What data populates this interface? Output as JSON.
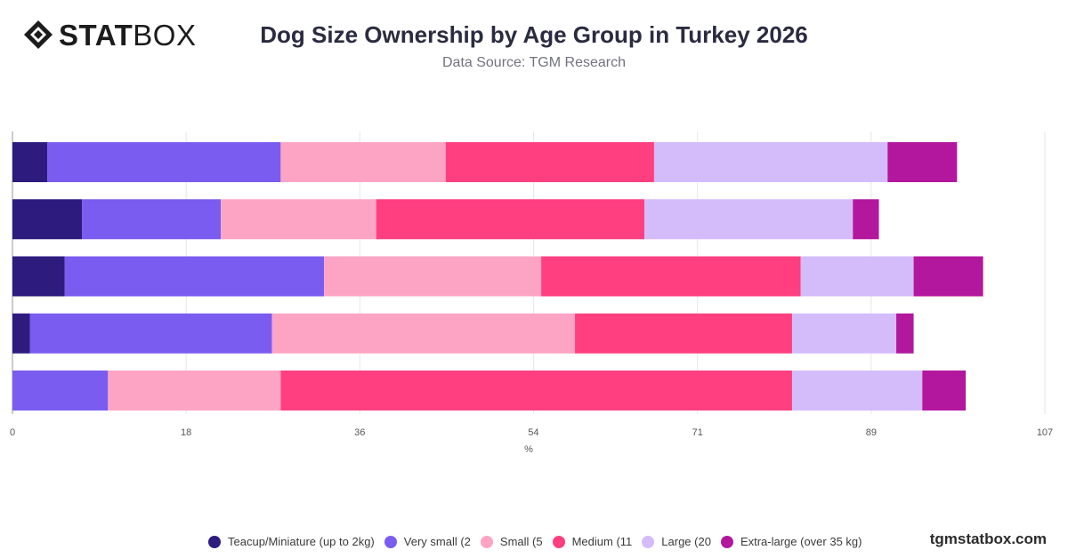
{
  "brand": {
    "logo_bold": "STAT",
    "logo_light": "BOX",
    "watermark": "tgmstatbox.com"
  },
  "header": {
    "title": "Dog Size Ownership by Age Group in Turkey 2026",
    "subtitle": "Data Source: TGM Research"
  },
  "colors": {
    "teacup": "#2e1b7e",
    "very_small": "#7b5cf0",
    "small": "#fda4c4",
    "medium": "#ff3f80",
    "large": "#d4bcfb",
    "extra_large": "#b3179e"
  },
  "chart_data": {
    "type": "bar",
    "orientation": "horizontal",
    "stacked": true,
    "xlabel": "%",
    "xlim": [
      0,
      107
    ],
    "xticks": [
      0,
      18,
      36,
      54,
      71,
      89,
      107
    ],
    "grid": true,
    "legend_position": "bottom",
    "series": [
      {
        "name": "Teacup/Miniature (up to 2kg)",
        "color": "#2e1b7e",
        "values": [
          3.6,
          7.2,
          5.4,
          1.8,
          0
        ]
      },
      {
        "name": "Very small (2",
        "color": "#7b5cf0",
        "values": [
          24.2,
          14.4,
          26.9,
          25.1,
          9.9
        ]
      },
      {
        "name": "Small (5",
        "color": "#fda4c4",
        "values": [
          17.1,
          16.1,
          22.5,
          31.4,
          17.9
        ]
      },
      {
        "name": "Medium (11",
        "color": "#ff3f80",
        "values": [
          21.6,
          27.8,
          26.9,
          22.5,
          53.0
        ]
      },
      {
        "name": "Large (20",
        "color": "#d4bcfb",
        "values": [
          24.2,
          21.6,
          11.7,
          10.8,
          13.5
        ]
      },
      {
        "name": "Extra-large (over 35 kg)",
        "color": "#b3179e",
        "values": [
          7.2,
          2.7,
          7.2,
          1.8,
          4.5
        ]
      }
    ]
  }
}
